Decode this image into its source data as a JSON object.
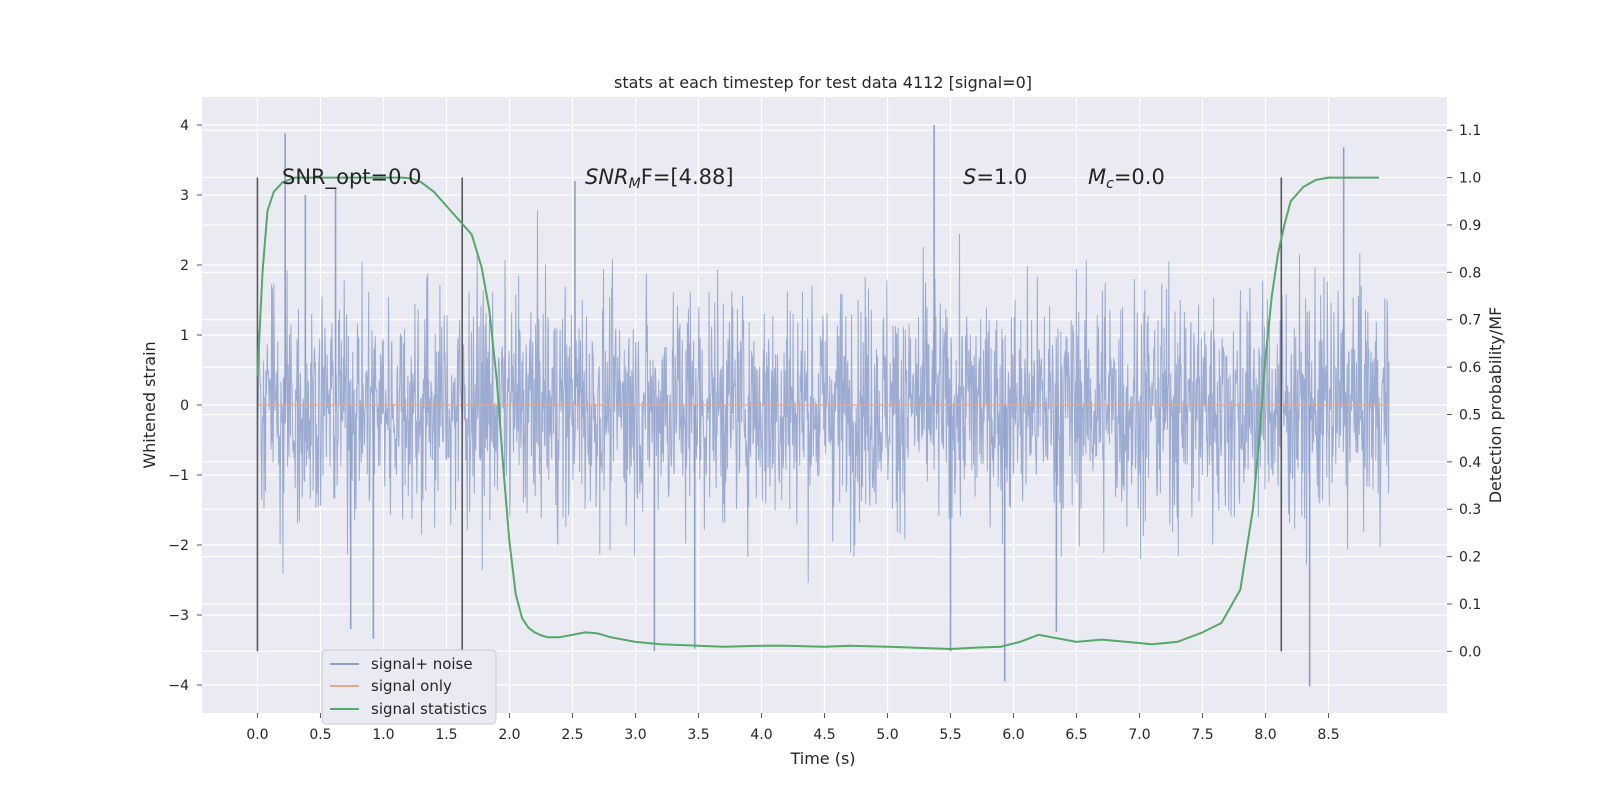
{
  "chart_data": {
    "type": "line",
    "title": "stats at each timestep for test data 4112 [signal=0]",
    "xlabel": "Time (s)",
    "ylabel": "Whitened strain",
    "ylabel_right": "Detection probability/MF",
    "xlim": [
      -0.44,
      9.44
    ],
    "ylim": [
      -4.4,
      4.4
    ],
    "ylim_right": [
      -0.13,
      1.17
    ],
    "xticks": [
      "0.0",
      "0.5",
      "1.0",
      "1.5",
      "2.0",
      "2.5",
      "3.0",
      "3.5",
      "4.0",
      "4.5",
      "5.0",
      "5.5",
      "6.0",
      "6.5",
      "7.0",
      "7.5",
      "8.0",
      "8.5"
    ],
    "yticks": [
      "4",
      "3",
      "2",
      "1",
      "0",
      "−1",
      "−2",
      "−3",
      "−4"
    ],
    "yticks_right": [
      "1.1",
      "1.0",
      "0.9",
      "0.8",
      "0.7",
      "0.6",
      "0.5",
      "0.4",
      "0.3",
      "0.2",
      "0.1",
      "0.0"
    ],
    "grid": true,
    "legend_position": "lower-left",
    "series": [
      {
        "name": "signal+ noise",
        "color": "#8da0cb",
        "axis": "left",
        "x_range": [
          0.0,
          8.98
        ],
        "typical_band": [
          -1.3,
          1.3
        ],
        "extremes": [
          {
            "x": 0.22,
            "y": 3.88
          },
          {
            "x": 0.38,
            "y": 3.0
          },
          {
            "x": 0.62,
            "y": 3.1
          },
          {
            "x": 0.74,
            "y": -3.2
          },
          {
            "x": 0.92,
            "y": -3.34
          },
          {
            "x": 2.52,
            "y": 3.2
          },
          {
            "x": 3.15,
            "y": -3.52
          },
          {
            "x": 3.47,
            "y": -3.48
          },
          {
            "x": 5.37,
            "y": 4.0
          },
          {
            "x": 5.5,
            "y": -3.52
          },
          {
            "x": 5.93,
            "y": -3.95
          },
          {
            "x": 6.34,
            "y": -3.24
          },
          {
            "x": 8.35,
            "y": -4.02
          },
          {
            "x": 8.62,
            "y": 3.68
          }
        ]
      },
      {
        "name": "signal only",
        "color": "#e5a88c",
        "axis": "left",
        "x": [
          0.0,
          8.98
        ],
        "y": [
          0.0,
          0.0
        ]
      },
      {
        "name": "signal statistics",
        "color": "#55a868",
        "axis": "right",
        "x": [
          0.0,
          0.04,
          0.08,
          0.13,
          0.2,
          0.3,
          0.5,
          0.8,
          1.0,
          1.15,
          1.22,
          1.3,
          1.4,
          1.5,
          1.6,
          1.7,
          1.78,
          1.84,
          1.9,
          1.95,
          2.0,
          2.05,
          2.1,
          2.15,
          2.2,
          2.25,
          2.3,
          2.4,
          2.5,
          2.6,
          2.7,
          2.8,
          3.0,
          3.2,
          3.5,
          3.7,
          4.0,
          4.2,
          4.5,
          4.7,
          5.0,
          5.2,
          5.5,
          5.7,
          5.9,
          6.05,
          6.2,
          6.3,
          6.5,
          6.7,
          6.9,
          7.1,
          7.3,
          7.5,
          7.65,
          7.8,
          7.9,
          7.95,
          8.0,
          8.05,
          8.1,
          8.15,
          8.2,
          8.3,
          8.4,
          8.5,
          8.6,
          8.7,
          8.8,
          8.9
        ],
        "y": [
          0.58,
          0.8,
          0.93,
          0.97,
          0.99,
          1.0,
          1.0,
          1.0,
          1.0,
          1.0,
          0.998,
          0.99,
          0.97,
          0.94,
          0.91,
          0.88,
          0.81,
          0.72,
          0.57,
          0.39,
          0.23,
          0.12,
          0.07,
          0.05,
          0.04,
          0.034,
          0.03,
          0.03,
          0.035,
          0.04,
          0.038,
          0.03,
          0.02,
          0.015,
          0.012,
          0.01,
          0.012,
          0.012,
          0.01,
          0.012,
          0.01,
          0.008,
          0.005,
          0.008,
          0.01,
          0.02,
          0.035,
          0.03,
          0.02,
          0.025,
          0.02,
          0.015,
          0.02,
          0.04,
          0.06,
          0.13,
          0.3,
          0.45,
          0.62,
          0.75,
          0.84,
          0.9,
          0.95,
          0.98,
          0.995,
          1.0,
          1.0,
          1.0,
          1.0,
          1.0
        ]
      }
    ],
    "vertical_lines_x": [
      0.0,
      1.625,
      8.125
    ],
    "annotations": [
      {
        "text": "SNR_opt=0.0"
      },
      {
        "main": "SNR",
        "sub": "M",
        "rest": "F=[4.88]"
      },
      {
        "main": "S",
        "rest": "=1.0"
      },
      {
        "main": "M",
        "sub": "c",
        "rest": "=0.0"
      }
    ]
  }
}
